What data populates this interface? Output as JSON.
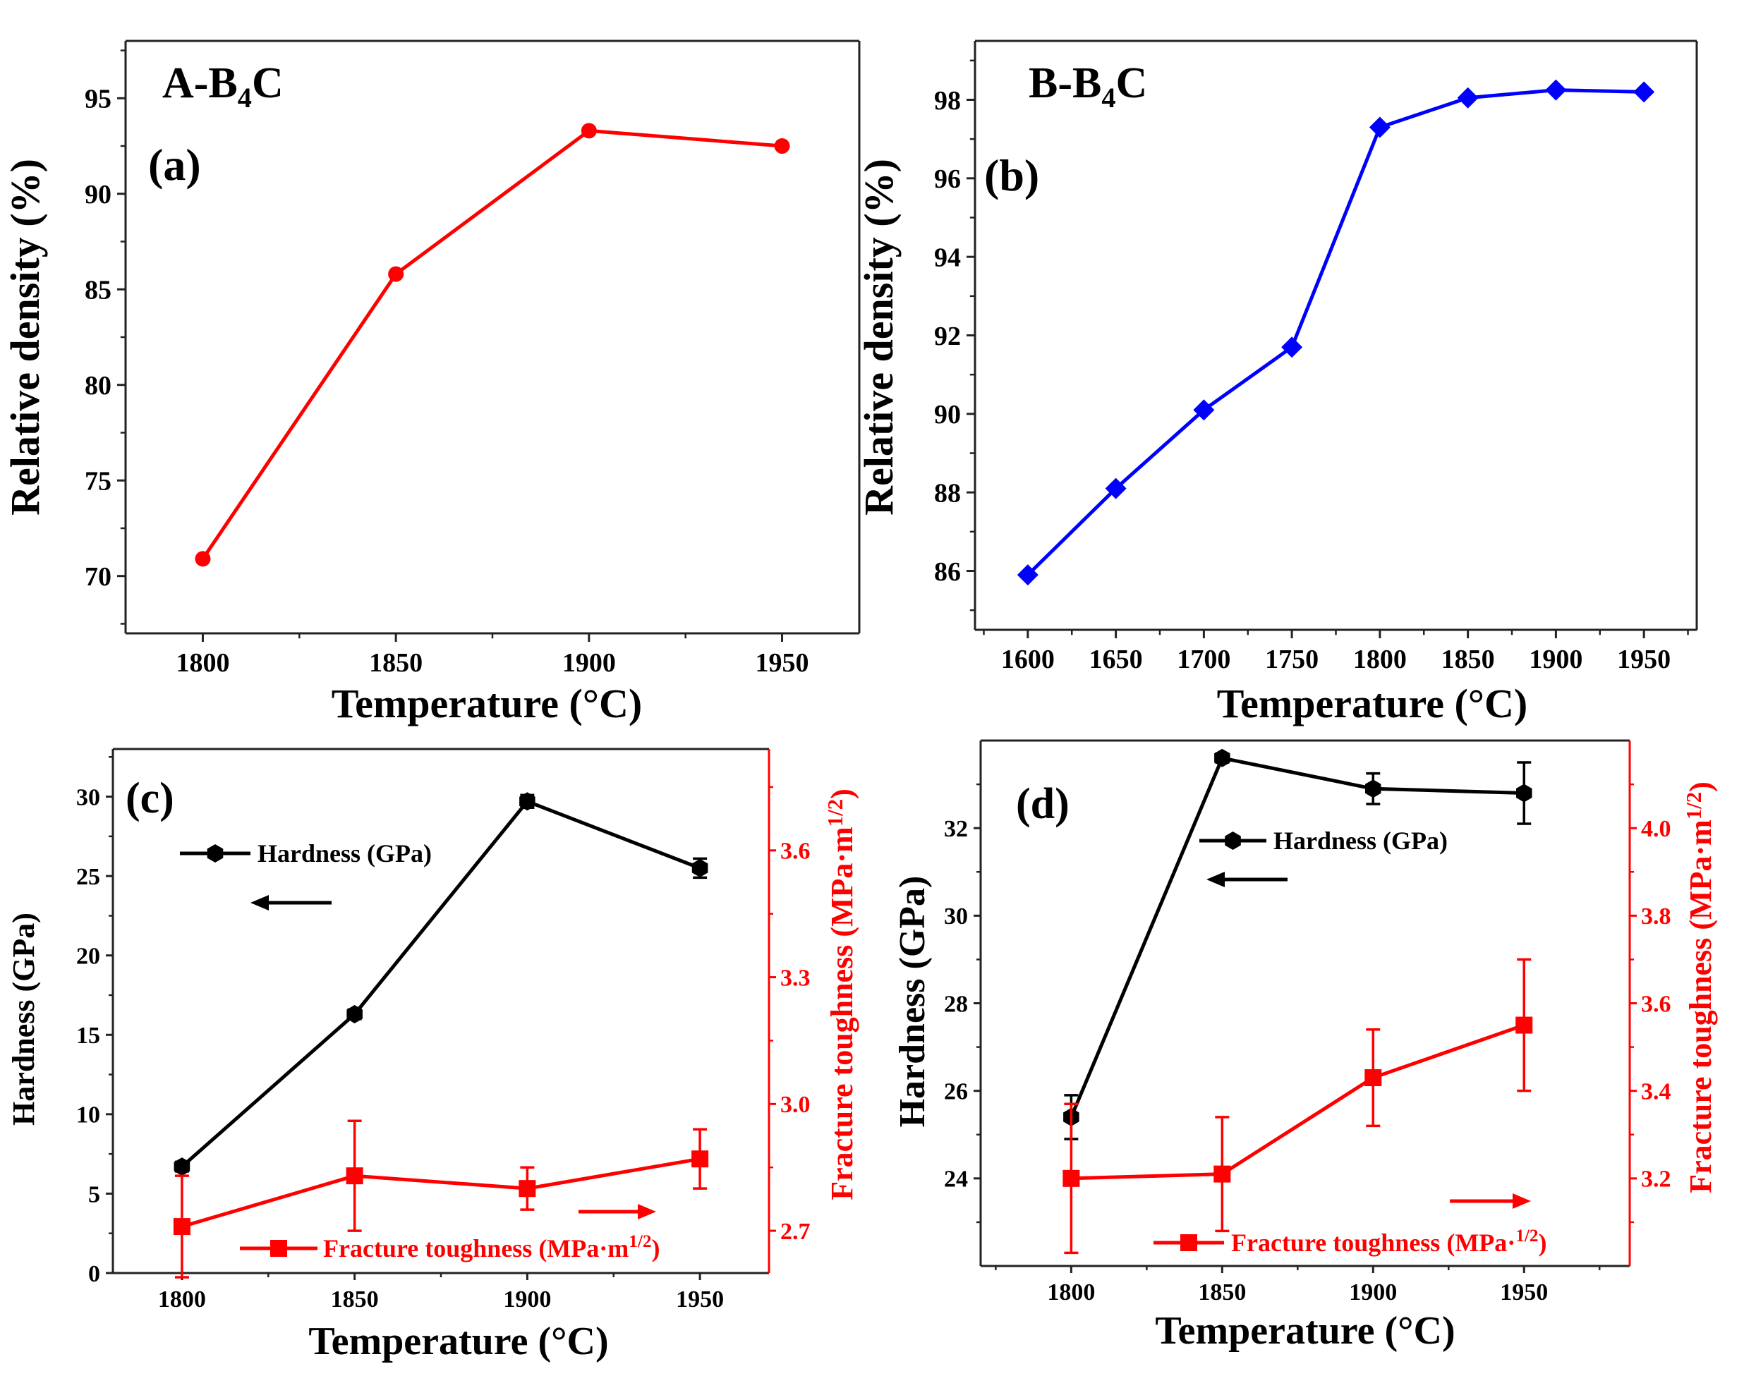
{
  "colors": {
    "red": "#ff0000",
    "blue": "#0000ff",
    "black": "#000000",
    "axis": "#333333"
  },
  "chart_data": [
    {
      "id": "a",
      "type": "line",
      "panel_label": "(a)",
      "title_main": "A-B",
      "title_sub": "4",
      "title_tail": "C",
      "xlabel": "Temperature (°C)",
      "ylabel": "Relative density (%)",
      "xlim": [
        1780,
        1970
      ],
      "ylim": [
        67,
        98
      ],
      "xticks": [
        1800,
        1850,
        1900,
        1950
      ],
      "yticks": [
        70,
        75,
        80,
        85,
        90,
        95
      ],
      "series": [
        {
          "name": "A-B4C",
          "color": "#ff0000",
          "marker": "circle",
          "x": [
            1800,
            1850,
            1900,
            1950
          ],
          "y": [
            70.9,
            85.8,
            93.3,
            92.5
          ]
        }
      ]
    },
    {
      "id": "b",
      "type": "line",
      "panel_label": "(b)",
      "title_main": "B-B",
      "title_sub": "4",
      "title_tail": "C",
      "xlabel": "Temperature (°C)",
      "ylabel": "Relative density (%)",
      "xlim": [
        1570,
        1980
      ],
      "ylim": [
        84.5,
        99.5
      ],
      "xticks": [
        1600,
        1650,
        1700,
        1750,
        1800,
        1850,
        1900,
        1950
      ],
      "yticks": [
        86,
        88,
        90,
        92,
        94,
        96,
        98
      ],
      "series": [
        {
          "name": "B-B4C",
          "color": "#0000ff",
          "marker": "diamond",
          "x": [
            1600,
            1650,
            1700,
            1750,
            1800,
            1850,
            1900,
            1950
          ],
          "y": [
            85.9,
            88.1,
            90.1,
            91.7,
            97.3,
            98.05,
            98.25,
            98.2
          ]
        }
      ]
    },
    {
      "id": "c",
      "type": "line",
      "panel_label": "(c)",
      "xlabel": "Temperature (°C)",
      "ylabel": "Hardness (GPa)",
      "ylabel_right": "Fracture toughness (MPa·m",
      "ylabel_right_sup": "1/2",
      "ylabel_right_tail": ")",
      "xlim": [
        1780,
        1970
      ],
      "ylim": [
        0,
        33
      ],
      "ylim_right": [
        2.6,
        3.84
      ],
      "xticks": [
        1800,
        1850,
        1900,
        1950
      ],
      "yticks": [
        0,
        5,
        10,
        15,
        20,
        25,
        30
      ],
      "yticks_right": [
        "2.7",
        "3.0",
        "3.3",
        "3.6"
      ],
      "series": [
        {
          "name": "Hardness (GPa)",
          "color": "#000000",
          "marker": "hexagon",
          "axis": "left",
          "x": [
            1800,
            1850,
            1900,
            1950
          ],
          "y": [
            6.7,
            16.3,
            29.7,
            25.5
          ],
          "err": [
            0.3,
            0.3,
            0.4,
            0.6
          ]
        },
        {
          "name": "Fracture toughness (MPa·m",
          "legend_sup": "1/2",
          "legend_tail": ")",
          "color": "#ff0000",
          "marker": "square",
          "axis": "right",
          "x": [
            1800,
            1850,
            1900,
            1950
          ],
          "y": [
            2.71,
            2.83,
            2.8,
            2.87
          ],
          "err": [
            0.12,
            0.13,
            0.05,
            0.07
          ]
        }
      ]
    },
    {
      "id": "d",
      "type": "line",
      "panel_label": "(d)",
      "xlabel": "Temperature (°C)",
      "ylabel": "Hardness (GPa)",
      "ylabel_right": "Fracture toughness (MPa·m",
      "ylabel_right_sup": "1/2",
      "ylabel_right_tail": ")",
      "xlim": [
        1770,
        1985
      ],
      "ylim": [
        22,
        34
      ],
      "ylim_right": [
        3.0,
        4.2
      ],
      "xticks": [
        1800,
        1850,
        1900,
        1950
      ],
      "yticks": [
        24,
        26,
        28,
        30,
        32
      ],
      "yticks_right": [
        "3.2",
        "3.4",
        "3.6",
        "3.8",
        "4.0"
      ],
      "series": [
        {
          "name": "Hardness (GPa)",
          "color": "#000000",
          "marker": "hexagon",
          "axis": "left",
          "x": [
            1800,
            1850,
            1900,
            1950
          ],
          "y": [
            25.4,
            33.6,
            32.9,
            32.8
          ],
          "err": [
            0.5,
            0.1,
            0.35,
            0.7
          ]
        },
        {
          "name": "Fracture toughness (MPa·",
          "legend_sup": "1/2",
          "legend_tail": ")",
          "color": "#ff0000",
          "marker": "square",
          "axis": "right",
          "x": [
            1800,
            1850,
            1900,
            1950
          ],
          "y": [
            3.2,
            3.21,
            3.43,
            3.55
          ],
          "err": [
            0.17,
            0.13,
            0.11,
            0.15
          ]
        }
      ]
    }
  ]
}
